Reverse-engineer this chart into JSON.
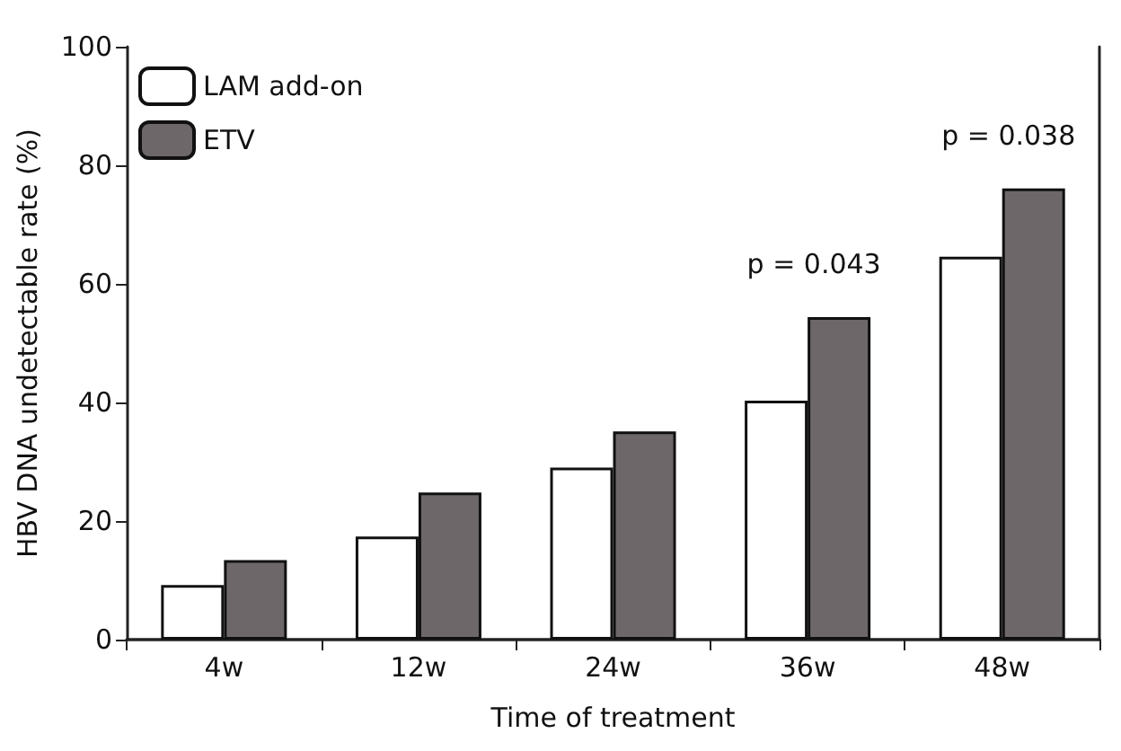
{
  "chart_data": {
    "type": "bar",
    "xlabel": "Time of treatment",
    "ylabel": "HBV DNA undetectable rate (%)",
    "categories": [
      "4w",
      "12w",
      "24w",
      "36w",
      "48w"
    ],
    "series": [
      {
        "name": "LAM add-on",
        "color": "#ffffff",
        "values": [
          9.2,
          17.4,
          29,
          40.3,
          64.6
        ]
      },
      {
        "name": "ETV",
        "color": "#6d6769",
        "values": [
          13.4,
          24.8,
          35.1,
          54.4,
          76.1
        ]
      }
    ],
    "ylim": [
      0,
      100
    ],
    "yticks": [
      0,
      20,
      40,
      60,
      80,
      100
    ],
    "grid": false,
    "legend": "top left",
    "annotations": [
      {
        "text": "p = 0.043",
        "x": "36w",
        "y": 54.4
      },
      {
        "text": "p = 0.038",
        "x": "48w",
        "y": 76.1
      }
    ]
  }
}
